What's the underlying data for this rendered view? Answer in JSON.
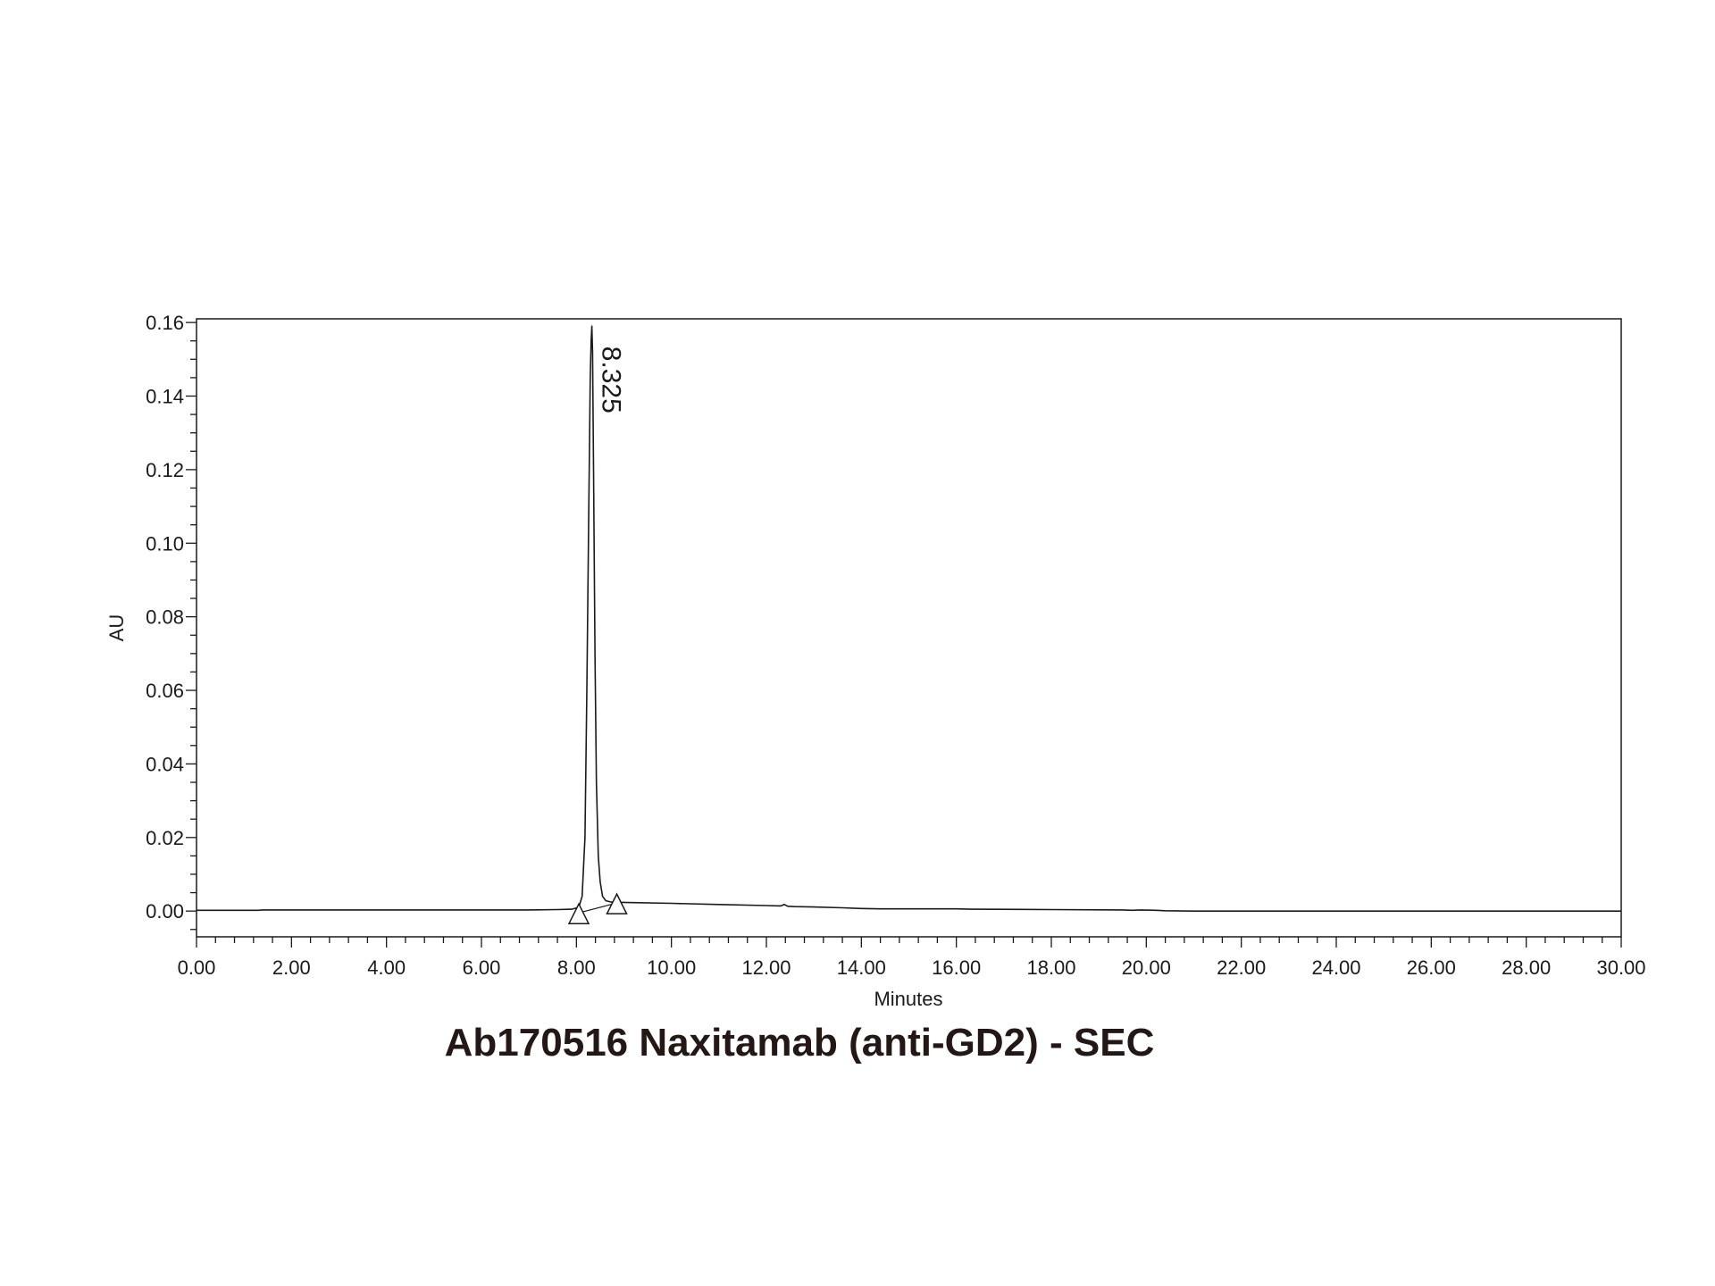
{
  "chart_data": {
    "type": "line",
    "title": "Ab170516 Naxitamab (anti-GD2) - SEC",
    "xlabel": "Minutes",
    "ylabel": "AU",
    "xlim": [
      0,
      30
    ],
    "ylim": [
      -0.007,
      0.161
    ],
    "x_ticks": [
      "0.00",
      "2.00",
      "4.00",
      "6.00",
      "8.00",
      "10.00",
      "12.00",
      "14.00",
      "16.00",
      "18.00",
      "20.00",
      "22.00",
      "24.00",
      "26.00",
      "28.00",
      "30.00"
    ],
    "x_tick_values": [
      0,
      2,
      4,
      6,
      8,
      10,
      12,
      14,
      16,
      18,
      20,
      22,
      24,
      26,
      28,
      30
    ],
    "y_ticks": [
      "0.00",
      "0.02",
      "0.04",
      "0.06",
      "0.08",
      "0.10",
      "0.12",
      "0.14",
      "0.16"
    ],
    "y_tick_values": [
      0,
      0.02,
      0.04,
      0.06,
      0.08,
      0.1,
      0.12,
      0.14,
      0.16
    ],
    "grid": false,
    "legend": "none",
    "series": [
      {
        "x": [
          0,
          1.3,
          1.4,
          5,
          7,
          7.6,
          7.9,
          8.05,
          8.12,
          8.18,
          8.22,
          8.26,
          8.29,
          8.31,
          8.325,
          8.34,
          8.36,
          8.39,
          8.42,
          8.46,
          8.5,
          8.55,
          8.62,
          8.72,
          8.85,
          9.2,
          10,
          11,
          12,
          12.3,
          12.38,
          12.45,
          12.6,
          13,
          13.6,
          14,
          14.4,
          16,
          16.3,
          18,
          19.5,
          19.7,
          19.9,
          20.2,
          20.4,
          21,
          25,
          30
        ],
        "y": [
          0.0002,
          0.0002,
          0.0003,
          0.0003,
          0.0003,
          0.0004,
          0.0005,
          0.001,
          0.004,
          0.02,
          0.06,
          0.11,
          0.145,
          0.155,
          0.159,
          0.152,
          0.12,
          0.07,
          0.035,
          0.015,
          0.008,
          0.004,
          0.0028,
          0.0025,
          0.0024,
          0.0023,
          0.0021,
          0.0018,
          0.0015,
          0.0014,
          0.0018,
          0.0013,
          0.0012,
          0.0011,
          0.0009,
          0.0007,
          0.0006,
          0.0006,
          0.0005,
          0.0004,
          0.0003,
          0.0002,
          0.0003,
          0.0002,
          0.0001,
          0.0,
          0.0,
          0.0
        ]
      }
    ],
    "baseline": {
      "x": [
        8.05,
        8.85
      ],
      "y": [
        -0.0005,
        0.0022
      ]
    },
    "markers": [
      {
        "x": 8.05,
        "y": -0.0005
      },
      {
        "x": 8.85,
        "y": 0.0022
      }
    ],
    "annotations": [
      {
        "text": "8.325",
        "x": 8.325,
        "y": 0.159
      }
    ]
  }
}
